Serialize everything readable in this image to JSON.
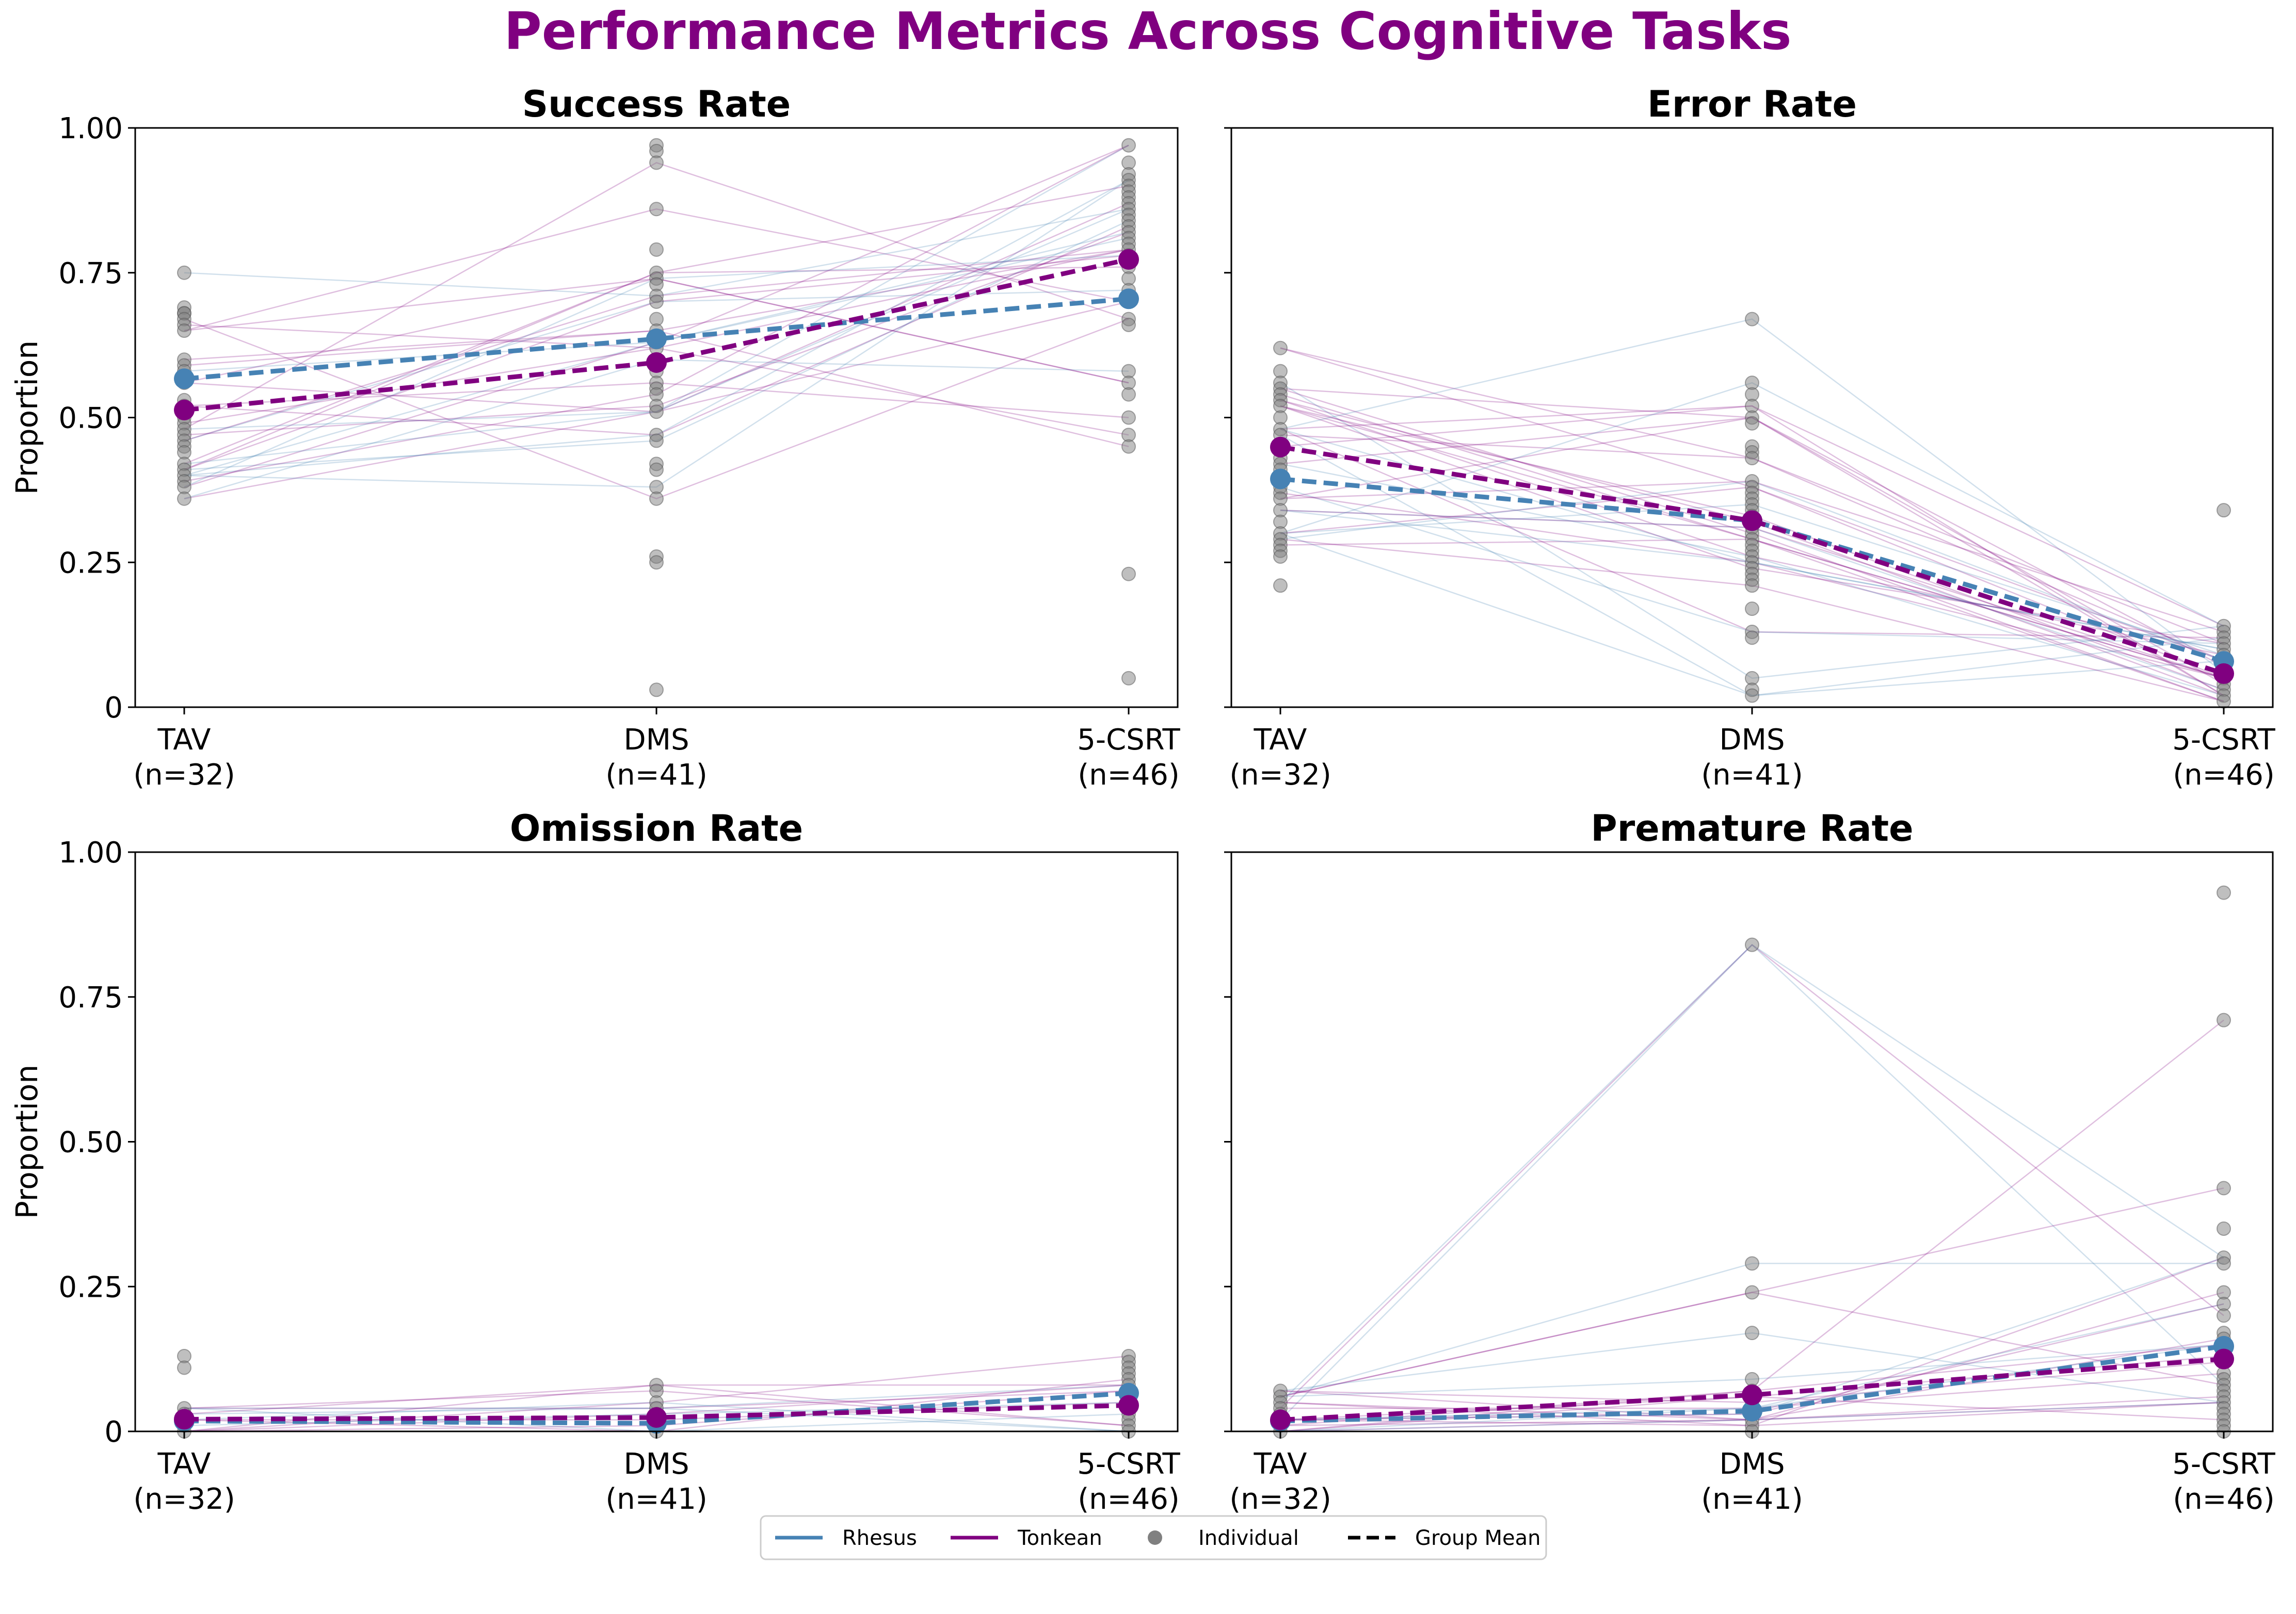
{
  "figure": {
    "title": "Performance Metrics Across Cognitive Tasks",
    "title_color": "#800080"
  },
  "legend": {
    "placement": "bottom-center",
    "items": [
      {
        "label": "Rhesus",
        "kind": "line",
        "color": "#4682b4"
      },
      {
        "label": "Tonkean",
        "kind": "line",
        "color": "#800080"
      },
      {
        "label": "Individual",
        "kind": "point",
        "color": "#808080"
      },
      {
        "label": "Group Mean",
        "kind": "dashed",
        "color": "#000000"
      }
    ]
  },
  "colors": {
    "rhesus": "#4682b4",
    "tonkean": "#800080",
    "individual": "#808080"
  },
  "chart_data": [
    {
      "type": "line",
      "title": "Success Rate",
      "ylabel": "Proportion",
      "ylim": [
        0,
        1
      ],
      "yticks": [
        "0",
        "0.25",
        "0.50",
        "0.75",
        "1.00"
      ],
      "categories": [
        "TAV\n(n=32)",
        "DMS\n(n=41)",
        "5-CSRT\n(n=46)"
      ],
      "series": [
        {
          "name": "Rhesus",
          "values": [
            0.567,
            0.636,
            0.705
          ]
        },
        {
          "name": "Tonkean",
          "values": [
            0.513,
            0.595,
            0.773
          ]
        }
      ],
      "individual_points": [
        [
          0.75,
          0.69,
          0.68,
          0.68,
          0.67,
          0.66,
          0.65,
          0.6,
          0.59,
          0.58,
          0.56,
          0.53,
          0.52,
          0.5,
          0.49,
          0.48,
          0.47,
          0.46,
          0.45,
          0.44,
          0.42,
          0.41,
          0.4,
          0.39,
          0.38,
          0.36
        ],
        [
          0.97,
          0.96,
          0.94,
          0.86,
          0.79,
          0.75,
          0.74,
          0.73,
          0.71,
          0.7,
          0.67,
          0.65,
          0.63,
          0.62,
          0.6,
          0.58,
          0.56,
          0.55,
          0.54,
          0.52,
          0.51,
          0.47,
          0.46,
          0.42,
          0.41,
          0.38,
          0.36,
          0.26,
          0.25,
          0.03
        ],
        [
          0.97,
          0.94,
          0.92,
          0.91,
          0.9,
          0.89,
          0.88,
          0.87,
          0.86,
          0.85,
          0.84,
          0.83,
          0.82,
          0.81,
          0.8,
          0.79,
          0.78,
          0.76,
          0.74,
          0.72,
          0.7,
          0.67,
          0.66,
          0.58,
          0.56,
          0.54,
          0.5,
          0.47,
          0.45,
          0.23,
          0.05
        ]
      ]
    },
    {
      "type": "line",
      "title": "Error Rate",
      "ylabel": "",
      "ylim": [
        0,
        1
      ],
      "yticks": [
        "0",
        "0.25",
        "0.50",
        "0.75",
        "1.00"
      ],
      "categories": [
        "TAV\n(n=32)",
        "DMS\n(n=41)",
        "5-CSRT\n(n=46)"
      ],
      "series": [
        {
          "name": "Rhesus",
          "values": [
            0.394,
            0.322,
            0.079
          ]
        },
        {
          "name": "Tonkean",
          "values": [
            0.449,
            0.322,
            0.058
          ]
        }
      ],
      "individual_points": [
        [
          0.62,
          0.58,
          0.56,
          0.55,
          0.54,
          0.53,
          0.52,
          0.5,
          0.48,
          0.47,
          0.45,
          0.43,
          0.42,
          0.41,
          0.39,
          0.38,
          0.37,
          0.36,
          0.34,
          0.32,
          0.3,
          0.29,
          0.28,
          0.27,
          0.26,
          0.21
        ],
        [
          0.67,
          0.56,
          0.54,
          0.52,
          0.5,
          0.49,
          0.45,
          0.44,
          0.43,
          0.39,
          0.38,
          0.37,
          0.36,
          0.35,
          0.34,
          0.33,
          0.32,
          0.31,
          0.3,
          0.29,
          0.28,
          0.27,
          0.26,
          0.25,
          0.24,
          0.23,
          0.22,
          0.21,
          0.17,
          0.13,
          0.12,
          0.05,
          0.03,
          0.02
        ],
        [
          0.34,
          0.14,
          0.13,
          0.12,
          0.11,
          0.1,
          0.09,
          0.08,
          0.07,
          0.06,
          0.05,
          0.04,
          0.03,
          0.02,
          0.01
        ]
      ]
    },
    {
      "type": "line",
      "title": "Omission Rate",
      "ylabel": "Proportion",
      "ylim": [
        0,
        1
      ],
      "yticks": [
        "0",
        "0.25",
        "0.50",
        "0.75",
        "1.00"
      ],
      "categories": [
        "TAV\n(n=32)",
        "DMS\n(n=41)",
        "5-CSRT\n(n=46)"
      ],
      "series": [
        {
          "name": "Rhesus",
          "values": [
            0.018,
            0.014,
            0.066
          ]
        },
        {
          "name": "Tonkean",
          "values": [
            0.021,
            0.024,
            0.045
          ]
        }
      ],
      "individual_points": [
        [
          0.13,
          0.11,
          0.04,
          0.03,
          0.02,
          0.01,
          0.0
        ],
        [
          0.08,
          0.07,
          0.05,
          0.04,
          0.03,
          0.02,
          0.01,
          0.0
        ],
        [
          0.13,
          0.12,
          0.11,
          0.1,
          0.09,
          0.08,
          0.07,
          0.06,
          0.05,
          0.04,
          0.03,
          0.02,
          0.01,
          0.0
        ]
      ]
    },
    {
      "type": "line",
      "title": "Premature Rate",
      "ylabel": "",
      "ylim": [
        0,
        1
      ],
      "yticks": [
        "0",
        "0.25",
        "0.50",
        "0.75",
        "1.00"
      ],
      "categories": [
        "TAV\n(n=32)",
        "DMS\n(n=41)",
        "5-CSRT\n(n=46)"
      ],
      "series": [
        {
          "name": "Rhesus",
          "values": [
            0.018,
            0.035,
            0.147
          ]
        },
        {
          "name": "Tonkean",
          "values": [
            0.02,
            0.063,
            0.125
          ]
        }
      ],
      "individual_points": [
        [
          0.07,
          0.06,
          0.05,
          0.04,
          0.03,
          0.02,
          0.01,
          0.0
        ],
        [
          0.84,
          0.29,
          0.24,
          0.17,
          0.09,
          0.07,
          0.06,
          0.05,
          0.04,
          0.03,
          0.02,
          0.01,
          0.0
        ],
        [
          0.93,
          0.71,
          0.42,
          0.35,
          0.3,
          0.29,
          0.24,
          0.22,
          0.2,
          0.17,
          0.16,
          0.15,
          0.13,
          0.12,
          0.1,
          0.09,
          0.08,
          0.07,
          0.06,
          0.05,
          0.04,
          0.03,
          0.02,
          0.01,
          0.0
        ]
      ]
    }
  ]
}
